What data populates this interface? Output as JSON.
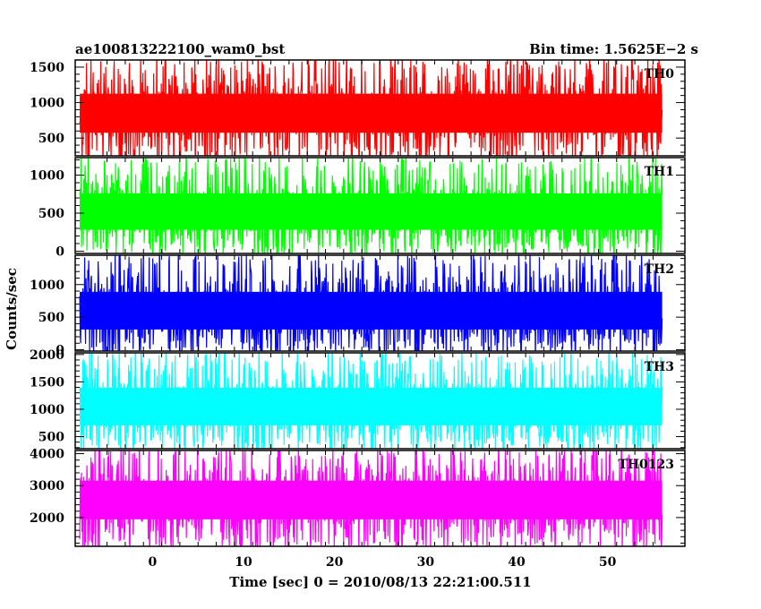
{
  "chart_data": {
    "type": "line",
    "title": "ae100813222100_wam0_bst",
    "subtitle": "Bin time: 1.5625E−2 s",
    "xlabel": "Time [sec] 0 = 2010/08/13 22:21:00.511",
    "ylabel": "Counts/sec",
    "xlim": [
      -8.5,
      58.5
    ],
    "data_x_range": [
      -8,
      56
    ],
    "x_ticks": [
      0,
      10,
      20,
      30,
      40,
      50
    ],
    "x_tick_labels": [
      "0",
      "10",
      "20",
      "30",
      "40",
      "50"
    ],
    "grid": false,
    "panels": [
      {
        "name": "TH0",
        "color": "#ff0000",
        "ylim": [
          250,
          1600
        ],
        "y_ticks": [
          500,
          1000,
          1500
        ],
        "y_tick_labels": [
          "500",
          "1000",
          "1500"
        ],
        "baseline": 850,
        "typical_low": 350,
        "typical_high": 1350,
        "extreme_low": 230,
        "extreme_high": 1600
      },
      {
        "name": "TH1",
        "color": "#00ff00",
        "ylim": [
          -30,
          1230
        ],
        "y_ticks": [
          0,
          500,
          1000
        ],
        "y_tick_labels": [
          "0",
          "500",
          "1000"
        ],
        "baseline": 520,
        "typical_low": 80,
        "typical_high": 950,
        "extreme_low": -10,
        "extreme_high": 1230
      },
      {
        "name": "TH2",
        "color": "#0000ff",
        "ylim": [
          -20,
          1450
        ],
        "y_ticks": [
          0,
          500,
          1000
        ],
        "y_tick_labels": [
          "0",
          "500",
          "1000"
        ],
        "baseline": 600,
        "typical_low": 80,
        "typical_high": 1130,
        "extreme_low": 0,
        "extreme_high": 1450
      },
      {
        "name": "TH3",
        "color": "#00ffff",
        "ylim": [
          280,
          2030
        ],
        "y_ticks": [
          500,
          1000,
          1500,
          2000
        ],
        "y_tick_labels": [
          "500",
          "1000",
          "1500",
          "2000"
        ],
        "baseline": 1050,
        "typical_low": 450,
        "typical_high": 1700,
        "extreme_low": 300,
        "extreme_high": 2030
      },
      {
        "name": "TH0123",
        "color": "#ff00ff",
        "ylim": [
          1100,
          4100
        ],
        "y_ticks": [
          2000,
          3000,
          4000
        ],
        "y_tick_labels": [
          "2000",
          "3000",
          "4000"
        ],
        "baseline": 2550,
        "typical_low": 1450,
        "typical_high": 3650,
        "extreme_low": 1100,
        "extreme_high": 4100
      }
    ]
  }
}
